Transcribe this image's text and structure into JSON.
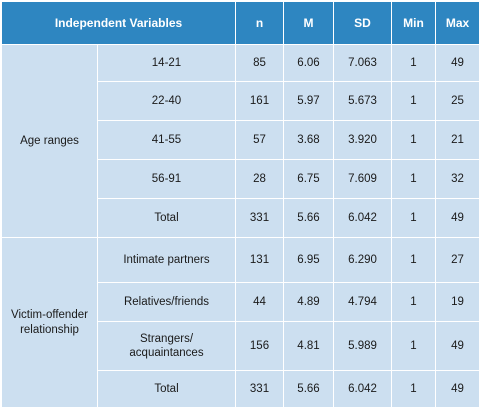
{
  "headers": [
    "Independent Variables",
    "n",
    "M",
    "SD",
    "Min",
    "Max"
  ],
  "groups": [
    {
      "label": "Age ranges",
      "rows": [
        {
          "sub": "14-21",
          "n": "85",
          "m": "6.06",
          "sd": "7.063",
          "min": "1",
          "max": "49"
        },
        {
          "sub": "22-40",
          "n": "161",
          "m": "5.97",
          "sd": "5.673",
          "min": "1",
          "max": "25"
        },
        {
          "sub": "41-55",
          "n": "57",
          "m": "3.68",
          "sd": "3.920",
          "min": "1",
          "max": "21"
        },
        {
          "sub": "56-91",
          "n": "28",
          "m": "6.75",
          "sd": "7.609",
          "min": "1",
          "max": "32"
        },
        {
          "sub": "Total",
          "n": "331",
          "m": "5.66",
          "sd": "6.042",
          "min": "1",
          "max": "49"
        }
      ]
    },
    {
      "label_line1": "Victim-offender",
      "label_line2": "relationship",
      "rows": [
        {
          "sub": "Intimate partners",
          "n": "131",
          "m": "6.95",
          "sd": "6.290",
          "min": "1",
          "max": "27"
        },
        {
          "sub": "Relatives/friends",
          "n": "44",
          "m": "4.89",
          "sd": "4.794",
          "min": "1",
          "max": "19"
        },
        {
          "sub_line1": "Strangers/",
          "sub_line2": "acquaintances",
          "n": "156",
          "m": "4.81",
          "sd": "5.989",
          "min": "1",
          "max": "49"
        },
        {
          "sub": "Total",
          "n": "331",
          "m": "5.66",
          "sd": "6.042",
          "min": "1",
          "max": "49"
        }
      ]
    }
  ]
}
